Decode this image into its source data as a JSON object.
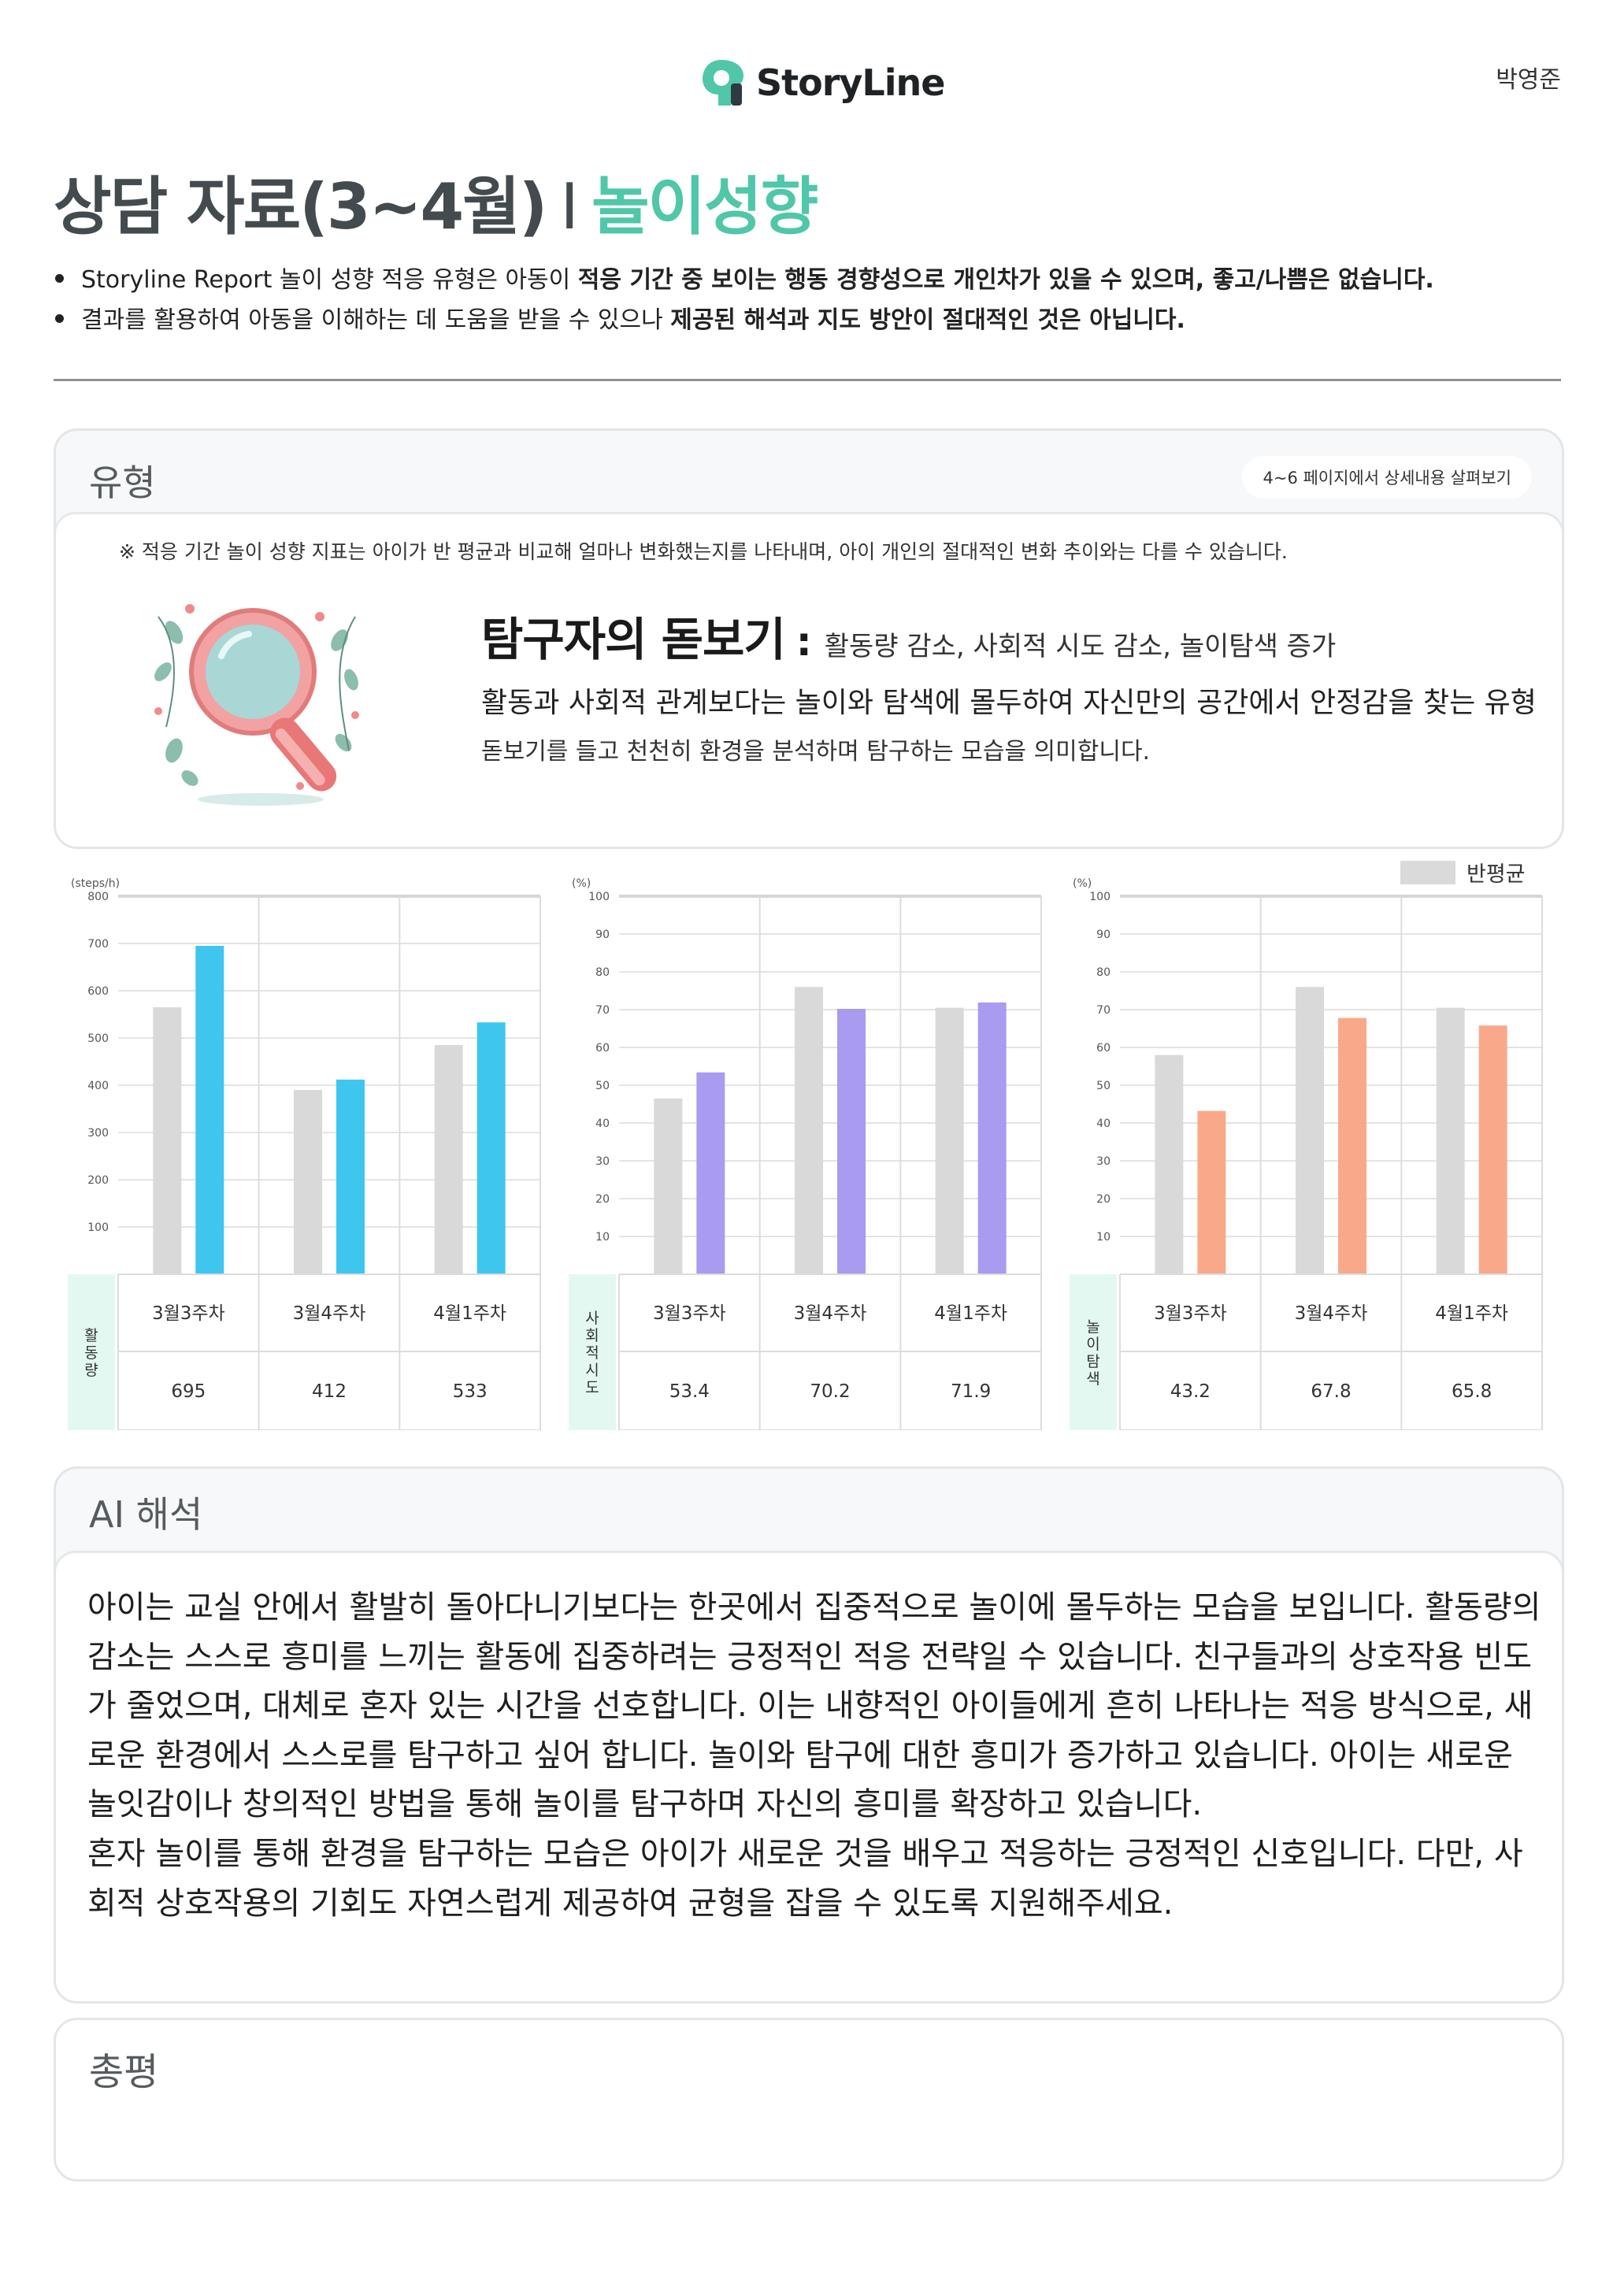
{
  "header": {
    "logo_text": "StoryLine",
    "author": "박영준",
    "title_main": "상담 자료(3~4월)",
    "title_sep": "I",
    "title_accent": "놀이성향"
  },
  "notes": [
    {
      "normal": "Storyline Report 놀이 성향 적응 유형은 아동이 ",
      "bold": "적응 기간 중 보이는 행동 경향성으로 개인차가 있을 수 있으며, 좋고/나쁨은 없습니다."
    },
    {
      "normal": "결과를 활용하여 아동을 이해하는 데 도움을 받을 수 있으나 ",
      "bold": "제공된 해석과 지도 방안이 절대적인 것은 아닙니다."
    }
  ],
  "type_section": {
    "heading": "유형",
    "detail_link": "4~6 페이지에서 상세내용 살펴보기",
    "note": "※ 적응 기간 놀이 성향 지표는 아이가 반 평균과 비교해 얼마나 변화했는지를 나타내며, 아이 개인의 절대적인 변화 추이와는 다를 수 있습니다.",
    "type_name": "탐구자의 돋보기",
    "colon": ":",
    "traits": "활동량 감소, 사회적 시도 감소, 놀이탐색 증가",
    "desc1": "활동과 사회적 관계보다는 놀이와 탐색에 몰두하여 자신만의 공간에서 안정감을 찾는 유형",
    "desc2": "돋보기를 들고 천천히 환경을 분석하며 탐구하는 모습을 의미합니다."
  },
  "legend": {
    "label": "반평균",
    "color": "#dadada"
  },
  "chart_data": [
    {
      "type": "bar",
      "unit": "(steps/h)",
      "row_label": "활동량",
      "categories": [
        "3월3주차",
        "3월4주차",
        "4월1주차"
      ],
      "series": [
        {
          "name": "반평균",
          "values": [
            565,
            390,
            485
          ],
          "color": "#d9d9d9"
        },
        {
          "name": "활동량",
          "values": [
            695,
            412,
            533
          ],
          "color": "#3ec6ef"
        }
      ],
      "value_labels": [
        "695",
        "412",
        "533"
      ],
      "ylim": [
        0,
        800
      ],
      "yticks": [
        100,
        200,
        300,
        400,
        500,
        600,
        700,
        800
      ]
    },
    {
      "type": "bar",
      "unit": "(%)",
      "row_label": "사회적 시도",
      "categories": [
        "3월3주차",
        "3월4주차",
        "4월1주차"
      ],
      "series": [
        {
          "name": "반평균",
          "values": [
            46.5,
            76,
            70.5
          ],
          "color": "#d9d9d9"
        },
        {
          "name": "사회적 시도",
          "values": [
            53.4,
            70.2,
            71.9
          ],
          "color": "#a89bf0"
        }
      ],
      "value_labels": [
        "53.4",
        "70.2",
        "71.9"
      ],
      "ylim": [
        0,
        100
      ],
      "yticks": [
        10,
        20,
        30,
        40,
        50,
        60,
        70,
        80,
        90,
        100
      ]
    },
    {
      "type": "bar",
      "unit": "(%)",
      "row_label": "놀이 탐색",
      "categories": [
        "3월3주차",
        "3월4주차",
        "4월1주차"
      ],
      "series": [
        {
          "name": "반평균",
          "values": [
            58,
            76,
            70.5
          ],
          "color": "#d9d9d9"
        },
        {
          "name": "놀이 탐색",
          "values": [
            43.2,
            67.8,
            65.8
          ],
          "color": "#f9a98a"
        }
      ],
      "value_labels": [
        "43.2",
        "67.8",
        "65.8"
      ],
      "ylim": [
        0,
        100
      ],
      "yticks": [
        10,
        20,
        30,
        40,
        50,
        60,
        70,
        80,
        90,
        100
      ]
    }
  ],
  "ai_section": {
    "heading": "AI 해석",
    "paragraph1": "아이는 교실 안에서 활발히 돌아다니기보다는 한곳에서 집중적으로 놀이에 몰두하는 모습을 보입니다. 활동량의 감소는 스스로 흥미를 느끼는 활동에 집중하려는 긍정적인 적응 전략일 수 있습니다. 친구들과의 상호작용 빈도가 줄었으며, 대체로 혼자 있는 시간을 선호합니다. 이는 내향적인 아이들에게 흔히 나타나는 적응 방식으로, 새로운 환경에서 스스로를 탐구하고 싶어 합니다. 놀이와 탐구에 대한 흥미가 증가하고 있습니다. 아이는 새로운 놀잇감이나 창의적인 방법을 통해 놀이를 탐구하며 자신의 흥미를 확장하고 있습니다.",
    "paragraph2": "혼자 놀이를 통해 환경을 탐구하는 모습은 아이가 새로운 것을 배우고 적응하는 긍정적인 신호입니다. 다만, 사회적 상호작용의 기회도 자연스럽게 제공하여 균형을 잡을 수 있도록 지원해주세요."
  },
  "summary_section": {
    "heading": "총평"
  }
}
